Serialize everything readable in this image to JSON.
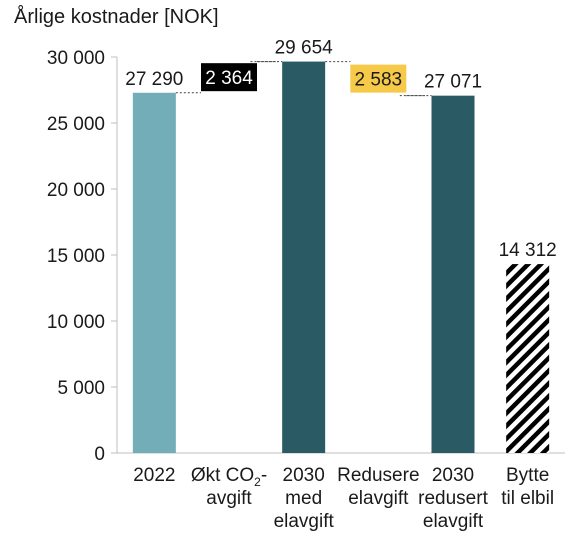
{
  "chart_data": {
    "type": "bar",
    "subtype": "waterfall",
    "title": "Årlige kostnader [NOK]",
    "ylim": [
      0,
      30000
    ],
    "yticks": [
      "0",
      "5 000",
      "10 000",
      "15 000",
      "20 000",
      "25 000",
      "30 000"
    ],
    "ytick_values": [
      0,
      5000,
      10000,
      15000,
      20000,
      25000,
      30000
    ],
    "grid": false,
    "bars": [
      {
        "category_lines": [
          "2022"
        ],
        "kind": "total",
        "start": 0,
        "end": 27290,
        "label": "27 290",
        "color": "#72adb8"
      },
      {
        "category_lines": [
          "Økt CO",
          "2",
          "-",
          "avgift"
        ],
        "category_format": "subscript-second",
        "kind": "increase",
        "start": 27290,
        "end": 29654,
        "label": "2 364",
        "label_bg": "#000000",
        "label_fg": "#ffffff"
      },
      {
        "category_lines": [
          "2030",
          "med",
          "elavgift"
        ],
        "kind": "total",
        "start": 0,
        "end": 29654,
        "label": "29 654",
        "color": "#2a5b64"
      },
      {
        "category_lines": [
          "Redusere",
          "elavgift"
        ],
        "kind": "decrease",
        "start": 29654,
        "end": 27071,
        "label": "2 583",
        "label_bg": "#f7c948",
        "label_fg": "#1a1a1a"
      },
      {
        "category_lines": [
          "2030",
          "redusert",
          "elavgift"
        ],
        "kind": "total",
        "start": 0,
        "end": 27071,
        "label": "27 071",
        "color": "#2a5b64"
      },
      {
        "category_lines": [
          "Bytte",
          "til elbil"
        ],
        "kind": "total",
        "start": 0,
        "end": 14312,
        "label": "14 312",
        "pattern": "hatch",
        "color": "#000000"
      }
    ]
  }
}
